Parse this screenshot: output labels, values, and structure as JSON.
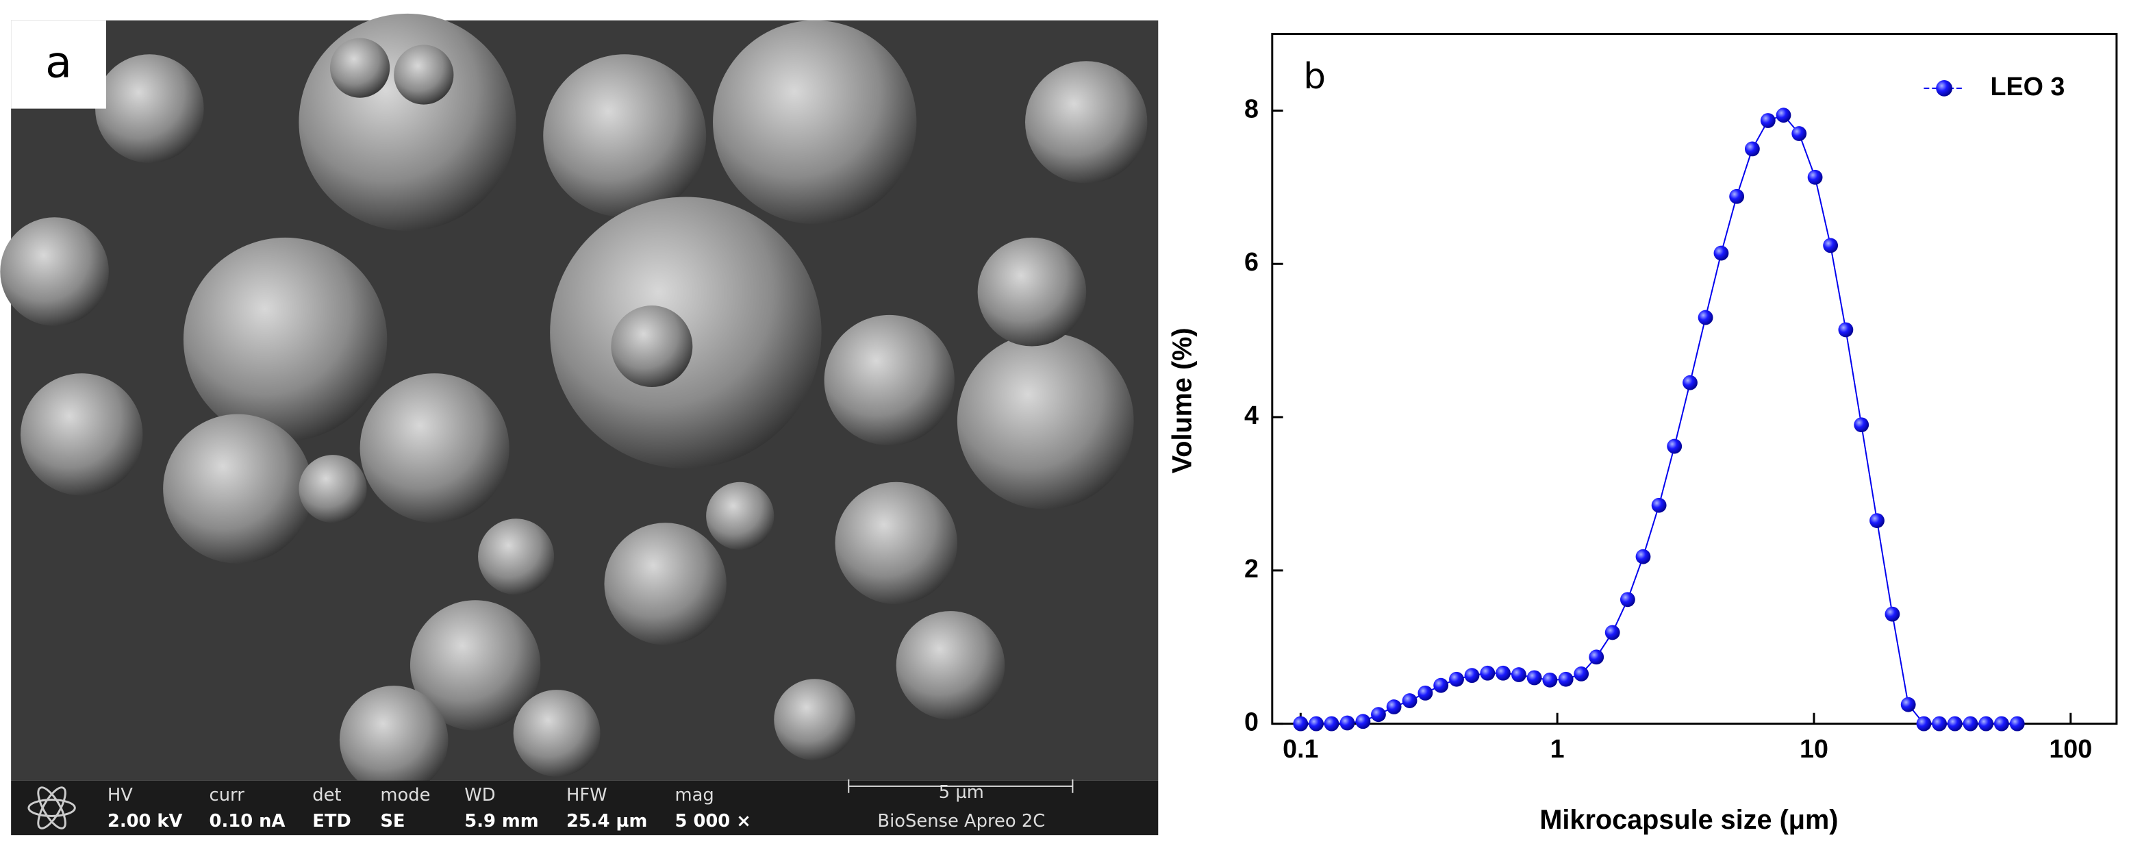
{
  "sem_image": {
    "label": "a",
    "info_bar": {
      "fields": [
        {
          "name": "HV",
          "value": "2.00 kV"
        },
        {
          "name": "curr",
          "value": "0.10 nA"
        },
        {
          "name": "det",
          "value": "ETD"
        },
        {
          "name": "mode",
          "value": "SE"
        },
        {
          "name": "WD",
          "value": "5.9 mm"
        },
        {
          "name": "HFW",
          "value": "25.4 µm"
        },
        {
          "name": "mag",
          "value": "5 000 ×"
        }
      ],
      "scale_bar": "5 µm",
      "instrument": "BioSense Apreo 2C"
    }
  },
  "chart_data": {
    "type": "scatter",
    "panel_label": "b",
    "x_label": "Mikrocapsule size (μm)",
    "y_label": "Volume (%)",
    "x_scale": "log",
    "legend": "upper right",
    "xlim": [
      0.0775,
      151
    ],
    "ylim": [
      0,
      9
    ],
    "xticks": [
      0.1,
      1,
      10,
      100
    ],
    "yticks": [
      0,
      2,
      4,
      6,
      8
    ],
    "series": [
      {
        "name": "LEO 3",
        "color": "#0000ee",
        "x": [
          0.1,
          0.115,
          0.132,
          0.152,
          0.175,
          0.201,
          0.231,
          0.266,
          0.306,
          0.352,
          0.405,
          0.465,
          0.535,
          0.615,
          0.708,
          0.814,
          0.936,
          1.08,
          1.24,
          1.42,
          1.64,
          1.88,
          2.16,
          2.49,
          2.86,
          3.29,
          3.78,
          4.35,
          5.0,
          5.75,
          6.62,
          7.61,
          8.75,
          10.1,
          11.6,
          13.3,
          15.3,
          17.6,
          20.2,
          23.3,
          26.8,
          30.8,
          35.4,
          40.7,
          46.8,
          53.8,
          61.9
        ],
        "values": [
          0,
          0,
          0,
          0.01,
          0.03,
          0.12,
          0.22,
          0.3,
          0.4,
          0.5,
          0.58,
          0.63,
          0.66,
          0.66,
          0.64,
          0.6,
          0.57,
          0.58,
          0.65,
          0.87,
          1.19,
          1.62,
          2.18,
          2.85,
          3.62,
          4.45,
          5.3,
          6.14,
          6.88,
          7.5,
          7.87,
          7.94,
          7.7,
          7.13,
          6.24,
          5.14,
          3.9,
          2.65,
          1.43,
          0.25,
          0,
          0,
          0,
          0,
          0,
          0,
          0
        ]
      }
    ]
  }
}
